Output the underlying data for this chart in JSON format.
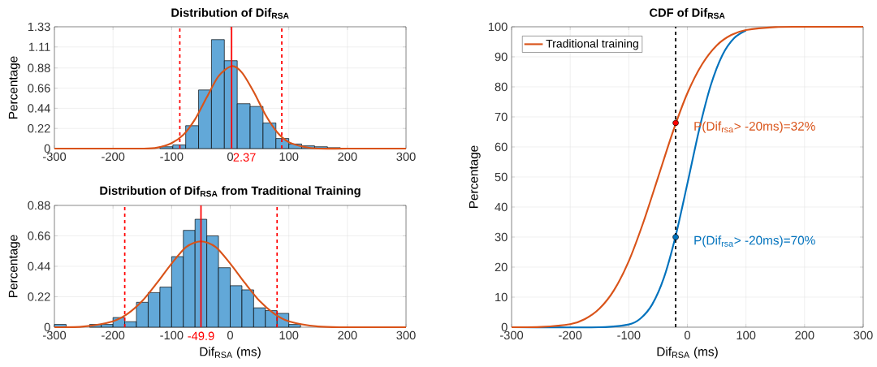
{
  "chart_data": [
    {
      "type": "histogram",
      "title": "Distribution of Dif$_{RSA}$",
      "ylabel": "Percentage",
      "bins": [
        -120,
        -98,
        -76,
        -54,
        -32,
        -10,
        12,
        34,
        56,
        78,
        100,
        122,
        144,
        166,
        188
      ],
      "values": [
        0.02,
        0.04,
        0.25,
        0.64,
        1.19,
        0.96,
        0.49,
        0.46,
        0.28,
        0.11,
        0.05,
        0.03,
        0.02,
        0.01
      ],
      "color": "#62a8d8",
      "series": [
        {
          "type": "line",
          "color": "#d95319",
          "x": [
            -300,
            -200,
            -150,
            -125,
            -100,
            -80,
            -60,
            -40,
            -20,
            2.37,
            20,
            40,
            60,
            80,
            100,
            125,
            150,
            200,
            300
          ],
          "values": [
            0,
            0,
            0,
            0.01,
            0.06,
            0.15,
            0.32,
            0.56,
            0.79,
            0.9,
            0.83,
            0.62,
            0.37,
            0.18,
            0.07,
            0.02,
            0,
            0,
            0
          ]
        }
      ],
      "ref_lines": [
        {
          "axis": "x",
          "value": 2.37,
          "label": "2.37",
          "color": "#ff0000",
          "line_style": "solid"
        },
        {
          "axis": "x",
          "value": -86,
          "color": "#ff0000",
          "line_style": "dashed"
        },
        {
          "axis": "x",
          "value": 88,
          "color": "#ff0000",
          "line_style": "dashed"
        }
      ],
      "xlim": [
        -300,
        300
      ],
      "xticks": [
        -300,
        -200,
        -100,
        0,
        100,
        200,
        300
      ],
      "ylim": [
        0,
        1.33
      ],
      "yticks": [
        0,
        0.22,
        0.44,
        0.66,
        0.88,
        1.11,
        1.33
      ],
      "grid": true
    },
    {
      "type": "histogram",
      "title": "Distribution of Dif$_{RSA}$ from Traditional Training",
      "xlabel": "Dif$_{RSA}$ (ms)",
      "ylabel": "Percentage",
      "bins": [
        -300,
        -280,
        -260,
        -240,
        -220,
        -200,
        -180,
        -160,
        -140,
        -120,
        -100,
        -80,
        -60,
        -40,
        -20,
        0,
        20,
        40,
        60,
        80,
        100,
        120
      ],
      "values": [
        0.02,
        null,
        null,
        0.02,
        0.02,
        0.07,
        0.04,
        0.18,
        0.25,
        0.29,
        0.51,
        0.7,
        0.78,
        0.66,
        0.43,
        0.3,
        0.27,
        0.14,
        0.12,
        0.1,
        0.02
      ],
      "color": "#62a8d8",
      "series": [
        {
          "type": "line",
          "color": "#d95319",
          "x": [
            -300,
            -250,
            -200,
            -175,
            -150,
            -125,
            -100,
            -75,
            -49.9,
            -25,
            0,
            25,
            50,
            75,
            100,
            150,
            200,
            300
          ],
          "values": [
            0,
            0.005,
            0.043,
            0.097,
            0.19,
            0.32,
            0.46,
            0.58,
            0.62,
            0.58,
            0.46,
            0.32,
            0.19,
            0.098,
            0.043,
            0.005,
            0,
            0
          ]
        }
      ],
      "ref_lines": [
        {
          "axis": "x",
          "value": -49.9,
          "label": "-49.9",
          "color": "#ff0000",
          "line_style": "solid"
        },
        {
          "axis": "x",
          "value": -180,
          "color": "#ff0000",
          "line_style": "dashed"
        },
        {
          "axis": "x",
          "value": 80,
          "color": "#ff0000",
          "line_style": "dashed"
        }
      ],
      "xlim": [
        -300,
        300
      ],
      "xticks": [
        -300,
        -200,
        -100,
        0,
        100,
        200,
        300
      ],
      "ylim": [
        0,
        0.88
      ],
      "yticks": [
        0,
        0.22,
        0.44,
        0.66,
        0.88
      ],
      "grid": true
    },
    {
      "type": "line",
      "title": "CDF of Dif$_{RSA}$",
      "xlabel": "Dif$_{RSA}$ (ms)",
      "ylabel": "Percentage",
      "series": [
        {
          "color": "#0072bd",
          "x": [
            -300,
            -150,
            -100,
            -80,
            -60,
            -40,
            -20,
            0,
            20,
            40,
            60,
            80,
            100
          ],
          "values": [
            0,
            0,
            0.9,
            2.9,
            7.6,
            16.5,
            30.4,
            47.8,
            65.7,
            80.6,
            90.7,
            96.3,
            98.8
          ]
        },
        {
          "name": "Traditional training",
          "color": "#d95319",
          "x": [
            -300,
            -250,
            -200,
            -175,
            -150,
            -125,
            -100,
            -75,
            -50,
            -25,
            0,
            25,
            50,
            75,
            100,
            150,
            200,
            300
          ],
          "values": [
            0,
            0.1,
            1.0,
            2.7,
            6.2,
            12.4,
            22.0,
            35.0,
            49.9,
            64.9,
            77.9,
            87.5,
            93.8,
            97.3,
            98.9,
            99.9,
            100,
            100
          ]
        },
        {
          "type": "scatter",
          "color": "#ff0000",
          "x": [
            -20
          ],
          "values": [
            68
          ]
        },
        {
          "type": "scatter",
          "color": "#0072bd",
          "x": [
            -20
          ],
          "values": [
            30
          ]
        }
      ],
      "ref_lines": [
        {
          "axis": "x",
          "value": -20,
          "color": "#000000",
          "line_style": "dashed"
        }
      ],
      "annotations": [
        {
          "text": "P(Dif$_{rsa}$> -20ms)=32%",
          "x": -20,
          "y": 68
        },
        {
          "text": "P(Dif$_{rsa}$> -20ms)=70%",
          "x": -20,
          "y": 30
        }
      ],
      "xlim": [
        -300,
        300
      ],
      "xticks": [
        -300,
        -200,
        -100,
        0,
        100,
        200,
        300
      ],
      "ylim": [
        0,
        100
      ],
      "yticks": [
        0,
        10,
        20,
        30,
        40,
        50,
        60,
        70,
        80,
        90,
        100
      ],
      "grid": true,
      "legend": "top left"
    }
  ]
}
